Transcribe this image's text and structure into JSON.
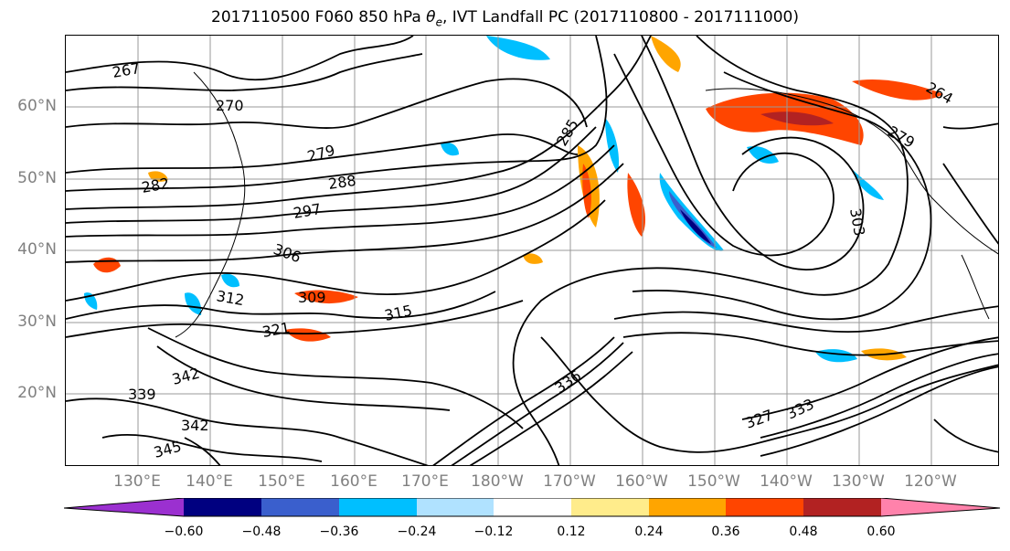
{
  "title": {
    "prefix": "2017110500 F060 850 hPa ",
    "theta": "θ",
    "theta_sub": "e",
    "suffix": ", IVT Landfall PC (2017110800 - 2017111000)"
  },
  "latitude_labels": [
    "60°N",
    "50°N",
    "40°N",
    "30°N",
    "20°N"
  ],
  "longitude_labels": [
    "130°E",
    "140°E",
    "150°E",
    "160°E",
    "170°E",
    "180°W",
    "170°W",
    "160°W",
    "150°W",
    "140°W",
    "130°W",
    "120°W"
  ],
  "contour_labels": [
    "267",
    "270",
    "279",
    "282",
    "288",
    "297",
    "306",
    "312",
    "309",
    "315",
    "321",
    "336",
    "339",
    "342",
    "345",
    "327",
    "333",
    "285",
    "264",
    "279",
    "303",
    "342"
  ],
  "colorbar": {
    "colors": [
      "#9b30d0",
      "#000080",
      "#3a5fcd",
      "#00bfff",
      "#b0e2ff",
      "#ffffff",
      "#ffec8b",
      "#ffa500",
      "#ff4500",
      "#b22222",
      "#ff82ab"
    ],
    "tick_labels": [
      "−0.60",
      "−0.48",
      "−0.36",
      "−0.24",
      "−0.12",
      "0.12",
      "0.24",
      "0.36",
      "0.48",
      "0.60"
    ]
  }
}
